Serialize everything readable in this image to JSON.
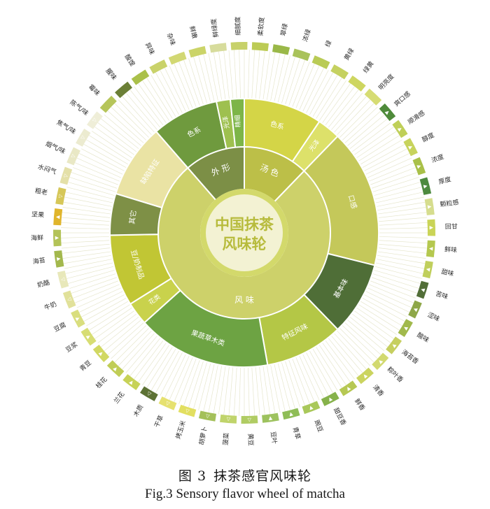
{
  "chart_data": {
    "type": "sunburst",
    "center": [
      "中国抹茶",
      "风味轮"
    ],
    "colors": {
      "center_disc": "#d3d96b",
      "center_circle": "#f3f2d3",
      "center_text": "#b7bb3c",
      "tier1_appearance": "#7c8f46",
      "tier1_liquor": "#bcbf48",
      "tier1_flavor": "#cdd16a",
      "spoke": "#e6e6cc"
    },
    "tier1": [
      {
        "id": "appearance",
        "label": "外 形",
        "start": -41,
        "end": 0
      },
      {
        "id": "liquor",
        "label": "汤 色",
        "start": 0,
        "end": 44
      },
      {
        "id": "flavor",
        "label": "风 味",
        "start": 44,
        "end": 319
      }
    ],
    "tier2": [
      {
        "label": "色系",
        "start": -41,
        "end": -12,
        "color": "#6f9a3e"
      },
      {
        "label": "光泽",
        "start": -12,
        "end": -6,
        "color": "#9ec04f"
      },
      {
        "label": "精细",
        "start": -6,
        "end": 0,
        "color": "#7db548"
      },
      {
        "label": "色系",
        "start": 0,
        "end": 34,
        "color": "#d4d547"
      },
      {
        "label": "光泽",
        "start": 34,
        "end": 44,
        "color": "#dde16a"
      },
      {
        "label": "口感",
        "start": 44,
        "end": 104,
        "color": "#c4c85a"
      },
      {
        "label": "基本味",
        "start": 104,
        "end": 136,
        "color": "#4f6e37"
      },
      {
        "label": "特征风味",
        "start": 136,
        "end": 170,
        "color": "#b4c746"
      },
      {
        "label": "果蔬草木类",
        "start": 170,
        "end": 228,
        "color": "#6da343"
      },
      {
        "label": "花类",
        "start": 228,
        "end": 238,
        "color": "#c9d24c"
      },
      {
        "label": "豆/奶制品",
        "start": 238,
        "end": 269,
        "color": "#c1c634"
      },
      {
        "label": "其它",
        "start": 269,
        "end": 287,
        "color": "#7e9046"
      },
      {
        "label": "缺陷特征",
        "start": 287,
        "end": 319,
        "color": "#eae3a4"
      }
    ],
    "tier3": [
      {
        "label": "鲜绿度",
        "color": "#d7dc9c",
        "marker": ""
      },
      {
        "label": "细腻度",
        "color": "#c7d16a",
        "marker": ""
      },
      {
        "label": "柔软度",
        "color": "#bccb55",
        "marker": ""
      },
      {
        "label": "翠绿",
        "color": "#9ab848",
        "marker": ""
      },
      {
        "label": "浓绿",
        "color": "#a9c25a",
        "marker": ""
      },
      {
        "label": "绿",
        "color": "#b9cb55",
        "marker": ""
      },
      {
        "label": "黄绿",
        "color": "#c5d160",
        "marker": ""
      },
      {
        "label": "绿黄",
        "color": "#ced660",
        "marker": ""
      },
      {
        "label": "明亮度",
        "color": "#d6dc73",
        "marker": ""
      },
      {
        "label": "爽口感",
        "color": "#4e8a3a",
        "marker": "▲"
      },
      {
        "label": "顺滑感",
        "color": "#bfcf58",
        "marker": "▲"
      },
      {
        "label": "醇度",
        "color": "#c7d35c",
        "marker": "▲"
      },
      {
        "label": "浓度",
        "color": "#a9c048",
        "marker": "▲"
      },
      {
        "label": "厚度",
        "color": "#4d8a3f",
        "marker": "▲"
      },
      {
        "label": "颗粒感",
        "color": "#d6dd8e",
        "marker": "▲"
      },
      {
        "label": "回甘",
        "color": "#cad457",
        "marker": "▲"
      },
      {
        "label": "鲜味",
        "color": "#b5c84f",
        "marker": "▲"
      },
      {
        "label": "甜味",
        "color": "#c0cf5c",
        "marker": "▲"
      },
      {
        "label": "苦味",
        "color": "#526e38",
        "marker": "▲"
      },
      {
        "label": "涩味",
        "color": "#8ea748",
        "marker": "▲"
      },
      {
        "label": "酸味",
        "color": "#a1b94c",
        "marker": "▲"
      },
      {
        "label": "海苔香",
        "color": "#c6cf60",
        "marker": "▲"
      },
      {
        "label": "粽叶香",
        "color": "#d2d970",
        "marker": "▲"
      },
      {
        "label": "清香",
        "color": "#cbd45f",
        "marker": "▲"
      },
      {
        "label": "鲜香",
        "color": "#b6c853",
        "marker": "▲"
      },
      {
        "label": "甜豆香",
        "color": "#86b24b",
        "marker": "▲"
      },
      {
        "label": "豌豆",
        "color": "#a9c85a",
        "marker": "▲"
      },
      {
        "label": "青草",
        "color": "#8fbd57",
        "marker": "▲"
      },
      {
        "label": "豆叶",
        "color": "#9dc25e",
        "marker": "▲"
      },
      {
        "label": "黄豆",
        "color": "#b0cc63",
        "marker": "▽"
      },
      {
        "label": "菠菜",
        "color": "#c0d46b",
        "marker": "▽"
      },
      {
        "label": "胡萝卜",
        "color": "#a4c05a",
        "marker": "▽"
      },
      {
        "label": "烤玉米",
        "color": "#e2df60",
        "marker": "▽"
      },
      {
        "label": "干草",
        "color": "#e6e170",
        "marker": "▽"
      },
      {
        "label": "木质",
        "color": "#5d7235",
        "marker": "▽"
      },
      {
        "label": "兰花",
        "color": "#c7d257",
        "marker": "▲"
      },
      {
        "label": "桂花",
        "color": "#c0cd56",
        "marker": "▲"
      },
      {
        "label": "青豆",
        "color": "#d1d862",
        "marker": "▲"
      },
      {
        "label": "豆浆",
        "color": "#d7dd73",
        "marker": "▲"
      },
      {
        "label": "豆腐",
        "color": "#d9de7e",
        "marker": "▲"
      },
      {
        "label": "牛奶",
        "color": "#e1e19a",
        "marker": "▽"
      },
      {
        "label": "奶酪",
        "color": "#e8e8ba",
        "marker": "▽"
      },
      {
        "label": "海苔",
        "color": "#a3b84d",
        "marker": "▲"
      },
      {
        "label": "海鲜",
        "color": "#b3c358",
        "marker": "▲"
      },
      {
        "label": "坚果",
        "color": "#e0b52c",
        "marker": "▲"
      },
      {
        "label": "粗老",
        "color": "#d6c758",
        "marker": "▽"
      },
      {
        "label": "水闷气",
        "color": "#e4e0a8",
        "marker": "▽"
      },
      {
        "label": "烟气/味",
        "color": "#e9e8c5",
        "marker": "▽"
      },
      {
        "label": "焦气/味",
        "color": "#ecebd0",
        "marker": "▽"
      },
      {
        "label": "陈气/味",
        "color": "#efeed8",
        "marker": "▽"
      },
      {
        "label": "霉味",
        "color": "#b6c55a",
        "marker": ""
      },
      {
        "label": "腥味",
        "color": "#6b7f36",
        "marker": ""
      },
      {
        "label": "酸馊",
        "color": "#aac04a",
        "marker": ""
      },
      {
        "label": "异味",
        "color": "#c9d26a",
        "marker": ""
      },
      {
        "label": "杂味",
        "color": "#d2d873",
        "marker": ""
      },
      {
        "label": "鲜嫩",
        "color": "#cbd468",
        "marker": ""
      }
    ]
  },
  "caption": {
    "zh_number": "图 3",
    "zh_title": "抹茶感官风味轮",
    "en": "Fig.3 Sensory flavor wheel of matcha"
  }
}
